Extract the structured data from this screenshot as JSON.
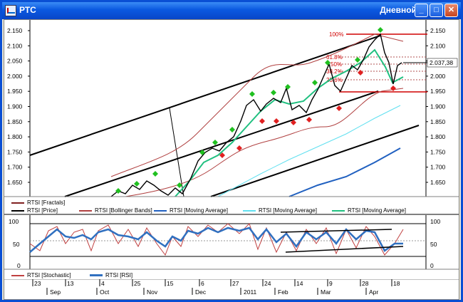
{
  "window": {
    "title": "РТС",
    "period": "Дневной",
    "buttons": {
      "minimize": "_",
      "maximize": "□",
      "close": "✕"
    }
  },
  "price_pane": {
    "y_ticks_left": [
      "2.150",
      "2.100",
      "2.050",
      "2.000",
      "1.950",
      "1.900",
      "1.850",
      "1.800",
      "1.750",
      "1.700",
      "1.650"
    ],
    "y_ticks_right": [
      "2.150",
      "2.100",
      "2.050",
      "2.000",
      "1.950",
      "1.900",
      "1.850",
      "1.800",
      "1.750",
      "1.700",
      "1.650"
    ],
    "current_price": "2.037,38",
    "fibonacci": {
      "level_100": "100%",
      "level_61": "61.8%",
      "level_50": "50%",
      "level_38": "38.2%",
      "level_23": "23.6%"
    },
    "legend": [
      "RTSI [Fractals]",
      "RTSI [Price]",
      "RTSI [Bollinger Bands]",
      "RTSI [Moving Average]",
      "RTSI [Moving Average]",
      "RTSI [Moving Average]"
    ]
  },
  "oscillator_pane": {
    "y_ticks_left": [
      "100",
      "50",
      "0"
    ],
    "y_ticks_right": [
      "100",
      "50",
      "0"
    ],
    "legend": [
      "RTSI [Stochastic]",
      "RTSI [RSI]"
    ]
  },
  "x_axis": {
    "day_ticks": [
      "23",
      "13",
      "4",
      "25",
      "15",
      "6",
      "27",
      "24",
      "14",
      "9",
      "28",
      "18"
    ],
    "month_ticks": [
      "Sep",
      "Oct",
      "Nov",
      "Dec",
      "2011",
      "Feb",
      "Mar",
      "Apr"
    ]
  },
  "colors": {
    "price_line": "#000000",
    "bollinger": "#b04040",
    "ma_fast": "#20c080",
    "ma_mid": "#60e0f0",
    "ma_slow": "#2060c0",
    "stochastic": "#c04040",
    "rsi": "#3070c0",
    "fractal_up": "#20c020",
    "fractal_down": "#e02020",
    "fib": "#d00000"
  }
}
